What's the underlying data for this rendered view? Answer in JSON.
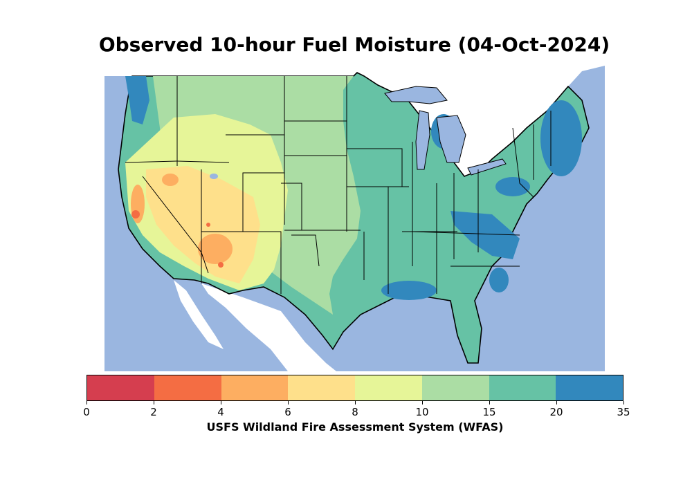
{
  "title": "Observed 10-hour Fuel Moisture (04-Oct-2024)",
  "colorbar": {
    "label": "USFS Wildland Fire Assessment System (WFAS)",
    "ticks": [
      "0",
      "2",
      "4",
      "6",
      "8",
      "10",
      "15",
      "20",
      "35"
    ],
    "colors": [
      "#d53e4f",
      "#f46d43",
      "#fdae61",
      "#fee08b",
      "#e6f598",
      "#abdda4",
      "#66c2a5",
      "#3288bd"
    ]
  },
  "map": {
    "ocean_color": "#9ab6e0",
    "lake_color": "#9ab6e0",
    "foreign_land_color": "#ffffff",
    "border_color": "#000000"
  }
}
